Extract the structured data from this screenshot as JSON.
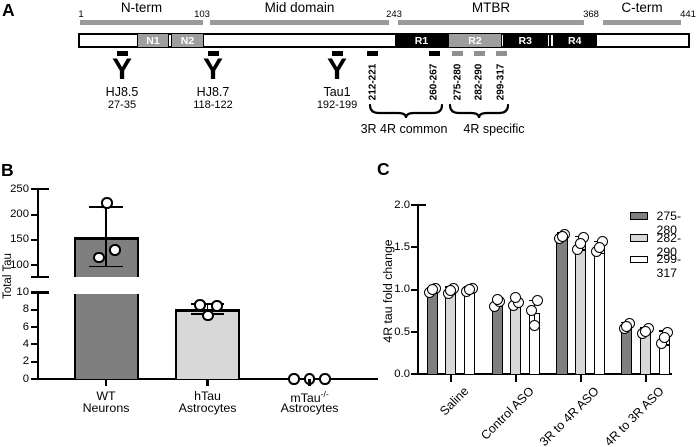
{
  "figure_type": "scientific-figure",
  "colors": {
    "dark_gray_bar": "#7f7f7f",
    "light_gray_bar": "#d8d8d8",
    "white_bar": "#ffffff",
    "diagram_ruler_gray": "#9a9a9a",
    "domain_gray": "#9e9e9e",
    "gray_tick": "#909090",
    "black": "#000000"
  },
  "panel_a": {
    "label": "A",
    "ruler_numbers": [
      "1",
      "103",
      "243",
      "368",
      "441"
    ],
    "region_labels": [
      "N-term",
      "Mid domain",
      "MTBR",
      "C-term"
    ],
    "domains": [
      {
        "label": "N1",
        "style": "gray"
      },
      {
        "label": "N2",
        "style": "gray"
      },
      {
        "label": "R1",
        "style": "black"
      },
      {
        "label": "R2",
        "style": "gray"
      },
      {
        "label": "R3",
        "style": "black"
      },
      {
        "label": "R4",
        "style": "black"
      }
    ],
    "antibody_icon": "Y",
    "antibodies": [
      {
        "name": "HJ8.5",
        "epitope": "27-35"
      },
      {
        "name": "HJ8.7",
        "epitope": "118-122"
      },
      {
        "name": "Tau1",
        "epitope": "192-199"
      }
    ],
    "epitope_site_labels": [
      {
        "label": "212-221",
        "tick": "black"
      },
      {
        "label": "260-267",
        "tick": "black"
      },
      {
        "label": "275-280",
        "tick": "gray"
      },
      {
        "label": "282-290",
        "tick": "gray"
      },
      {
        "label": "299-317",
        "tick": "gray"
      }
    ],
    "brackets": [
      {
        "label": "3R 4R common"
      },
      {
        "label": "4R specific"
      }
    ]
  },
  "chart_data": [
    {
      "id": "panel_b",
      "panel_label": "B",
      "type": "bar",
      "ylabel": "Total Tau",
      "axis_break": true,
      "upper_axis": {
        "ticks": [
          "100",
          "150",
          "200",
          "250"
        ],
        "range": [
          78,
          250
        ]
      },
      "lower_axis": {
        "ticks": [
          "0",
          "2",
          "4",
          "6",
          "8",
          "10"
        ],
        "range": [
          0,
          10
        ]
      },
      "categories": [
        {
          "line1": "WT",
          "line2": "Neurons"
        },
        {
          "line1": "hTau",
          "line2": "Astrocytes"
        },
        {
          "line1": "mTau",
          "line1_superscript": "-/-",
          "line2": "Astrocytes"
        }
      ],
      "values": [
        155,
        8.1,
        0
      ],
      "error_low": [
        98,
        7.5,
        null
      ],
      "error_high": [
        215,
        8.7,
        null
      ],
      "points": [
        [
          223,
          130,
          115
        ],
        [
          8.55,
          8.45,
          7.35
        ],
        [
          0,
          0,
          0
        ]
      ],
      "bar_colors": [
        "#7f7f7f",
        "#d8d8d8",
        null
      ]
    },
    {
      "id": "panel_c",
      "panel_label": "C",
      "type": "grouped-bar",
      "ylabel": "4R tau fold change",
      "ylim": [
        0,
        2
      ],
      "yticks": [
        "0.0",
        "0.5",
        "1.0",
        "1.5",
        "2.0"
      ],
      "categories": [
        "Saline",
        "Control ASO",
        "3R to 4R ASO",
        "4R to 3R ASO"
      ],
      "legend_position": "top-right",
      "series": [
        {
          "name": "275-280",
          "color": "#7f7f7f",
          "values": [
            0.99,
            0.84,
            1.63,
            0.57
          ],
          "error_low": [
            0.96,
            0.8,
            1.59,
            0.53
          ],
          "error_high": [
            1.02,
            0.88,
            1.67,
            0.61
          ],
          "points": [
            [
              0.97,
              1.01,
              1.0
            ],
            [
              0.8,
              0.86,
              0.88
            ],
            [
              1.6,
              1.65,
              1.63
            ],
            [
              0.54,
              0.6,
              0.57
            ]
          ]
        },
        {
          "name": "282-290",
          "color": "#d8d8d8",
          "values": [
            0.99,
            0.85,
            1.55,
            0.51
          ],
          "error_low": [
            0.95,
            0.8,
            1.47,
            0.47
          ],
          "error_high": [
            1.03,
            0.9,
            1.63,
            0.55
          ],
          "points": [
            [
              0.95,
              1.02,
              0.99
            ],
            [
              0.81,
              0.85,
              0.91
            ],
            [
              1.48,
              1.62,
              1.55
            ],
            [
              0.48,
              0.54,
              0.51
            ]
          ]
        },
        {
          "name": "299-317",
          "color": "#ffffff",
          "values": [
            1.0,
            0.72,
            1.5,
            0.43
          ],
          "error_low": [
            0.97,
            0.57,
            1.43,
            0.35
          ],
          "error_high": [
            1.03,
            0.87,
            1.57,
            0.51
          ],
          "points": [
            [
              0.98,
              1.01,
              1.0
            ],
            [
              0.76,
              0.87,
              0.58
            ],
            [
              1.45,
              1.57,
              1.5
            ],
            [
              0.36,
              0.5,
              0.43
            ]
          ]
        }
      ]
    }
  ]
}
